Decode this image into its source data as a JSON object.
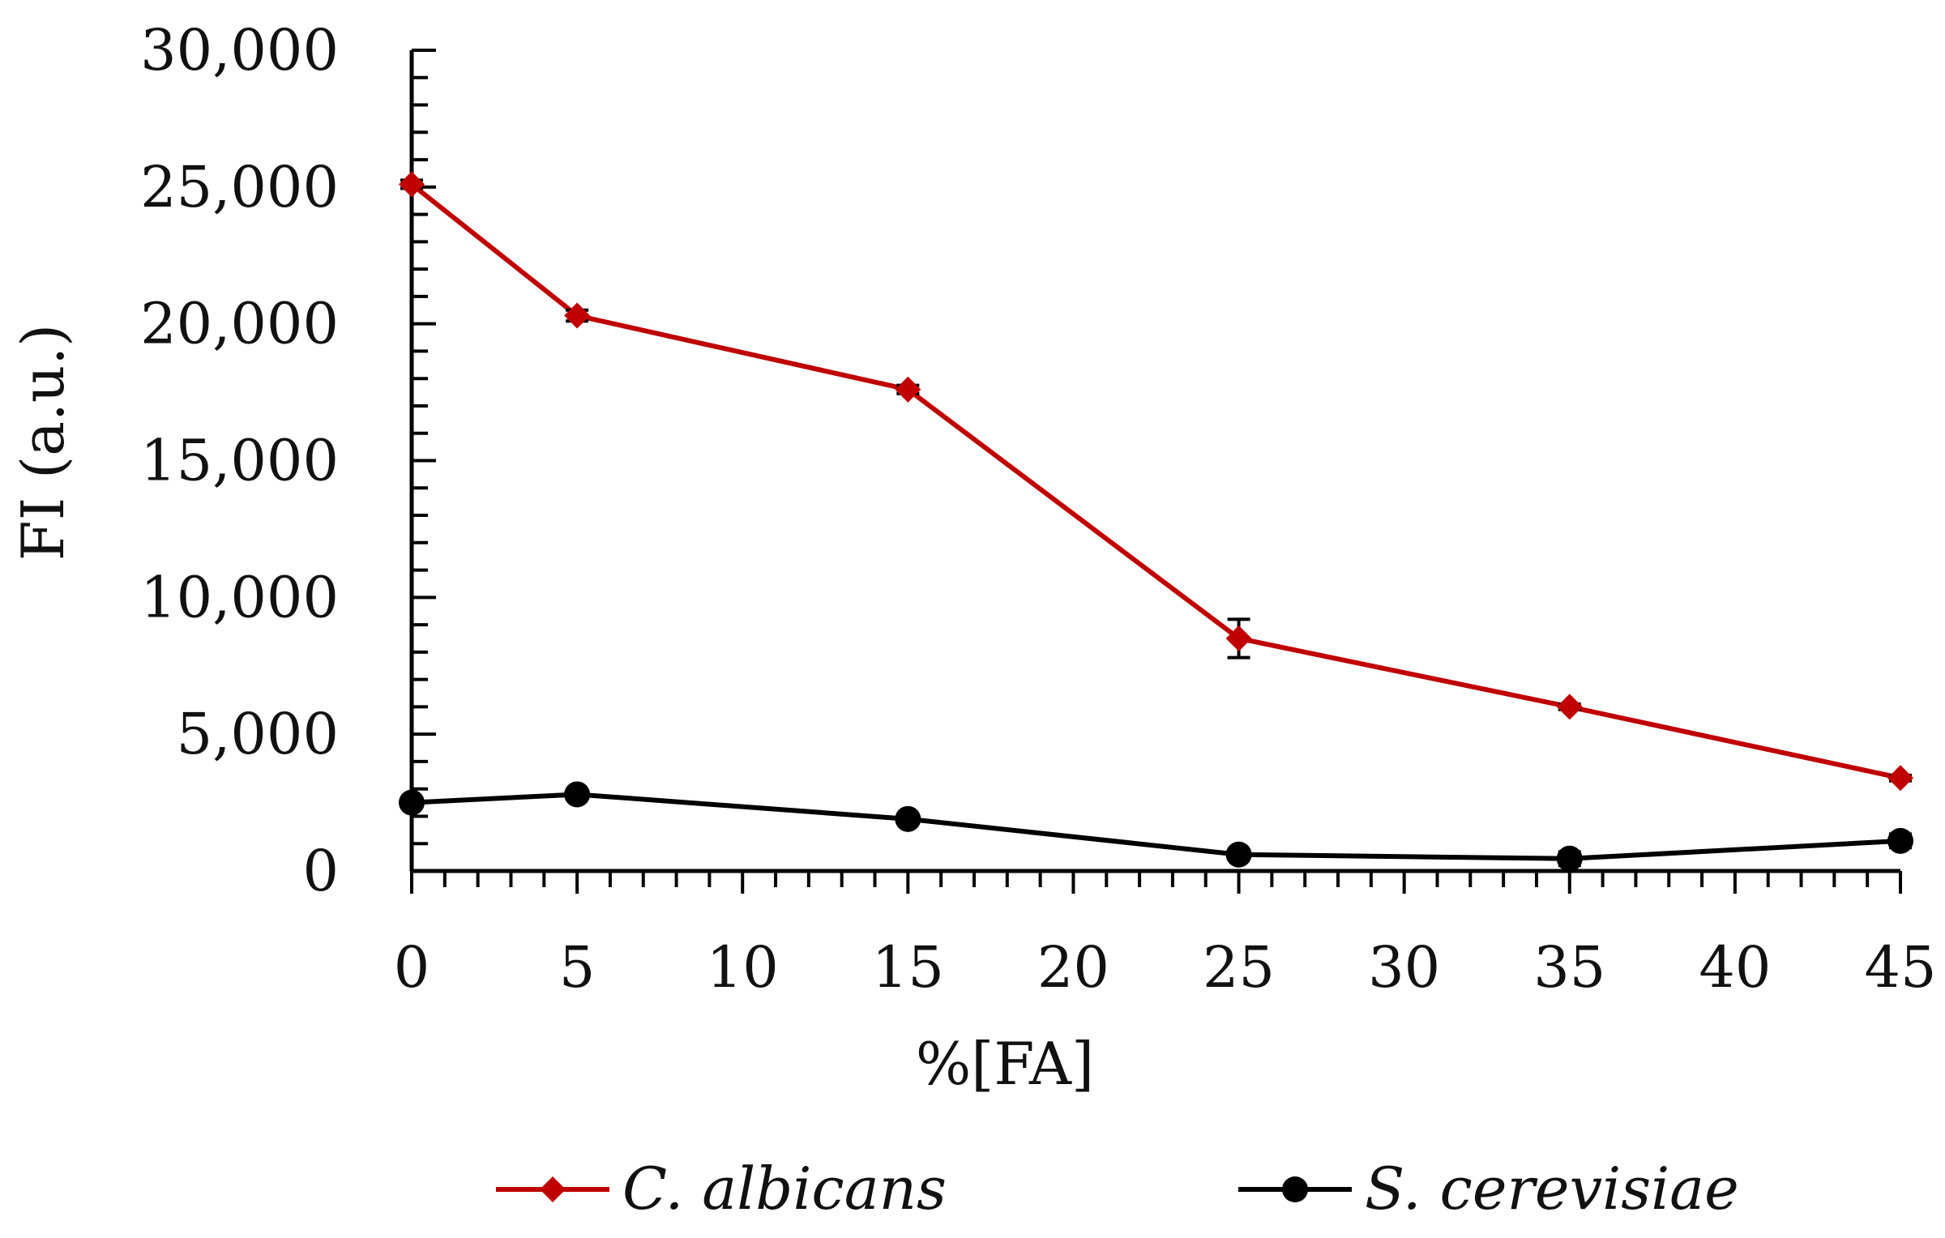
{
  "chart_data": {
    "type": "line",
    "title": "",
    "xlabel": "%[FA]",
    "ylabel": "FI (a.u.)",
    "x": [
      0,
      5,
      15,
      25,
      35,
      45
    ],
    "x_ticks": [
      0,
      5,
      10,
      15,
      20,
      25,
      30,
      35,
      40,
      45
    ],
    "x_tick_labels": [
      "0",
      "5",
      "10",
      "15",
      "20",
      "25",
      "30",
      "35",
      "40",
      "45"
    ],
    "xlim": [
      0,
      45
    ],
    "y_ticks": [
      0,
      5000,
      10000,
      15000,
      20000,
      25000,
      30000
    ],
    "y_tick_labels": [
      "0",
      "5,000",
      "10,000",
      "15,000",
      "20,000",
      "25,000",
      "30,000"
    ],
    "ylim": [
      0,
      30000
    ],
    "grid": false,
    "legend_position": "bottom",
    "series": [
      {
        "name": "C. albicans",
        "color": "#c00000",
        "marker": "diamond",
        "values": [
          25100,
          20300,
          17600,
          8500,
          6000,
          3400
        ],
        "errors": [
          150,
          200,
          150,
          700,
          100,
          100
        ]
      },
      {
        "name": "S. cerevisiae",
        "color": "#000000",
        "marker": "circle",
        "values": [
          2500,
          2800,
          1900,
          600,
          450,
          1100
        ],
        "errors": [
          100,
          100,
          100,
          100,
          250,
          250
        ]
      }
    ]
  }
}
